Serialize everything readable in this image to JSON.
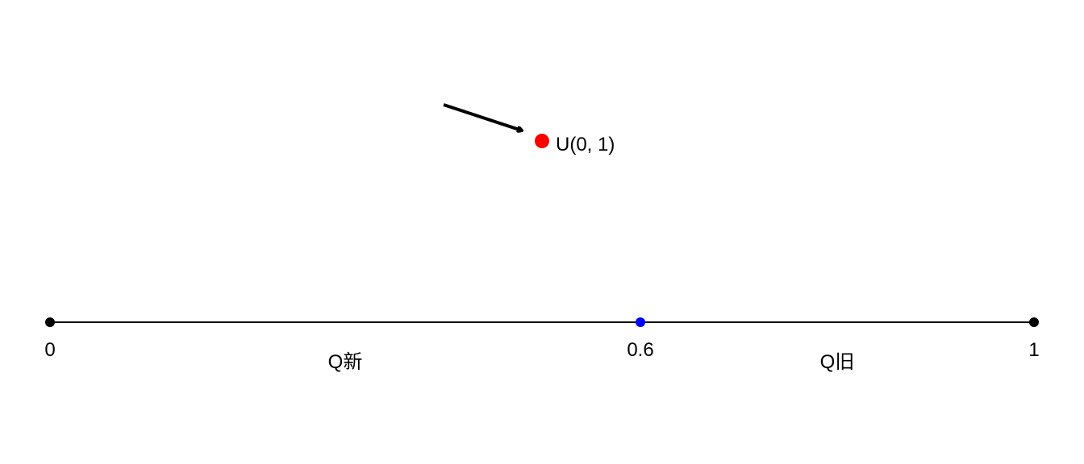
{
  "number_line": {
    "min": 0,
    "max": 1,
    "line_color": "#000000",
    "ticks": [
      {
        "value": 0,
        "label": "0",
        "color": "#000000"
      },
      {
        "value": 0.6,
        "label": "0.6",
        "color": "#0000ff"
      },
      {
        "value": 1,
        "label": "1",
        "color": "#000000"
      }
    ],
    "regions": [
      {
        "label": "Q新",
        "from": 0,
        "to": 0.6
      },
      {
        "label": "Q旧",
        "from": 0.6,
        "to": 1
      }
    ]
  },
  "sample_point": {
    "label": "U(0, 1)",
    "color": "#ff0000",
    "arrow_color": "#000000"
  }
}
